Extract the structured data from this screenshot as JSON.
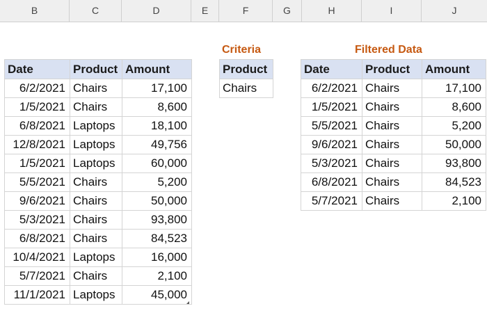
{
  "columns": [
    "B",
    "C",
    "D",
    "E",
    "F",
    "G",
    "H",
    "I",
    "J"
  ],
  "source": {
    "headers": [
      "Date",
      "Product",
      "Amount"
    ],
    "rows": [
      [
        "6/2/2021",
        "Chairs",
        "17,100"
      ],
      [
        "1/5/2021",
        "Chairs",
        "8,600"
      ],
      [
        "6/8/2021",
        "Laptops",
        "18,100"
      ],
      [
        "12/8/2021",
        "Laptops",
        "49,756"
      ],
      [
        "1/5/2021",
        "Laptops",
        "60,000"
      ],
      [
        "5/5/2021",
        "Chairs",
        "5,200"
      ],
      [
        "9/6/2021",
        "Chairs",
        "50,000"
      ],
      [
        "5/3/2021",
        "Chairs",
        "93,800"
      ],
      [
        "6/8/2021",
        "Chairs",
        "84,523"
      ],
      [
        "10/4/2021",
        "Laptops",
        "16,000"
      ],
      [
        "5/7/2021",
        "Chairs",
        "2,100"
      ],
      [
        "11/1/2021",
        "Laptops",
        "45,000"
      ]
    ]
  },
  "criteria": {
    "title": "Criteria",
    "header": "Product",
    "value": "Chairs"
  },
  "filtered": {
    "title": "Filtered Data",
    "headers": [
      "Date",
      "Product",
      "Amount"
    ],
    "rows": [
      [
        "6/2/2021",
        "Chairs",
        "17,100"
      ],
      [
        "1/5/2021",
        "Chairs",
        "8,600"
      ],
      [
        "5/5/2021",
        "Chairs",
        "5,200"
      ],
      [
        "9/6/2021",
        "Chairs",
        "50,000"
      ],
      [
        "5/3/2021",
        "Chairs",
        "93,800"
      ],
      [
        "6/8/2021",
        "Chairs",
        "84,523"
      ],
      [
        "5/7/2021",
        "Chairs",
        "2,100"
      ]
    ]
  }
}
